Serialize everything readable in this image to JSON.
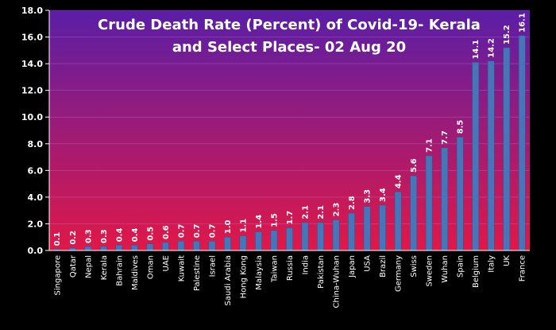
{
  "chart_data": {
    "type": "bar",
    "title_lines": [
      "Crude Death Rate (Percent) of Covid-19- Kerala",
      "and Select Places- 02 Aug 20"
    ],
    "xlabel": "",
    "ylabel": "",
    "ylim": [
      0,
      18
    ],
    "yticks": [
      "0.0",
      "2.0",
      "4.0",
      "6.0",
      "8.0",
      "10.0",
      "12.0",
      "14.0",
      "16.0",
      "18.0"
    ],
    "grid": true,
    "legend": "none",
    "categories": [
      "Singapore",
      "Qatar",
      "Nepal",
      "Kerala",
      "Bahrain",
      "Maldives",
      "Oman",
      "UAE",
      "Kuwait",
      "Palestine",
      "Israel",
      "Saudi Arabia",
      "Hong Kong",
      "Malaysia",
      "Taiwan",
      "Russia",
      "India",
      "Pakistan",
      "China-Wuhan",
      "Japan",
      "USA",
      "Brazil",
      "Germany",
      "Swiss",
      "Sweden",
      "Wuhan",
      "Spain",
      "Belgium",
      "Italy",
      "UK",
      "France"
    ],
    "values": [
      0.1,
      0.2,
      0.3,
      0.3,
      0.4,
      0.4,
      0.5,
      0.6,
      0.7,
      0.7,
      0.7,
      1.0,
      1.1,
      1.4,
      1.5,
      1.7,
      2.1,
      2.1,
      2.3,
      2.8,
      3.3,
      3.4,
      4.4,
      5.6,
      7.1,
      7.7,
      8.5,
      14.1,
      14.2,
      15.2,
      16.1
    ],
    "value_labels": [
      "0.1",
      "0.2",
      "0.3",
      "0.3",
      "0.4",
      "0.4",
      "0.5",
      "0.6",
      "0.7",
      "0.7",
      "0.7",
      "1.0",
      "1.1",
      "1.4",
      "1.5",
      "1.7",
      "2.1",
      "2.1",
      "2.3",
      "2.8",
      "3.3",
      "3.4",
      "4.4",
      "5.6",
      "7.1",
      "7.7",
      "8.5",
      "14.1",
      "14.2",
      "15.2",
      "16.1"
    ],
    "colors": {
      "bar": "#4a74b8",
      "bar_edge": "#2f5595",
      "plot_top": "#5a1ea6",
      "plot_bottom": "#e01848",
      "background": "#000000",
      "gridline": "#b07ad0"
    }
  }
}
